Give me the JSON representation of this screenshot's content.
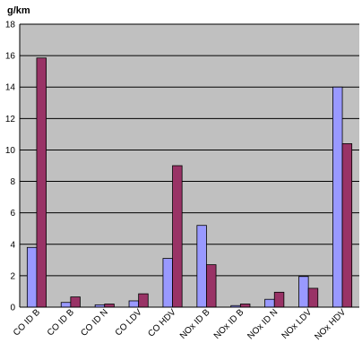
{
  "chart_data": {
    "type": "bar",
    "ylabel": "g/km",
    "ylim": [
      0,
      18
    ],
    "yticks": [
      0,
      2,
      4,
      6,
      8,
      10,
      12,
      14,
      16,
      18
    ],
    "grid": true,
    "legend": "none",
    "categories": [
      "CO ID B",
      "CO ID B",
      "CO ID N",
      "CO LDV",
      "CO HDV",
      "NOx ID B",
      "NOx ID B",
      "NOx ID N",
      "NOx LDV",
      "NOx HDV"
    ],
    "series": [
      {
        "values": [
          3.8,
          0.3,
          0.15,
          0.4,
          3.1,
          5.2,
          0.1,
          0.5,
          1.95,
          14.0
        ],
        "color": "#9999ff"
      },
      {
        "values": [
          15.85,
          0.65,
          0.2,
          0.85,
          9.0,
          2.7,
          0.2,
          0.95,
          1.2,
          10.4
        ],
        "color": "#993366"
      }
    ],
    "plot_background": "#c0c0c0"
  }
}
